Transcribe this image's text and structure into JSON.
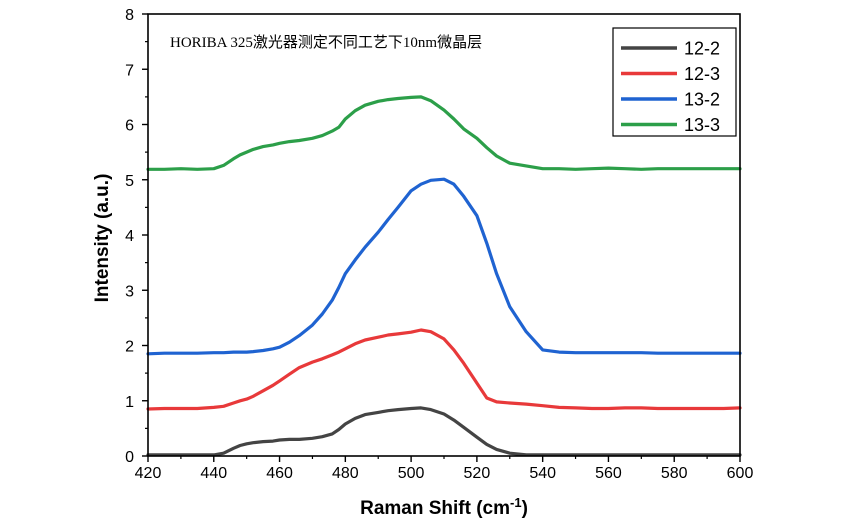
{
  "chart_data": {
    "type": "line",
    "annotation": "HORIBA 325激光器测定不同工艺下10nm微晶层",
    "xlabel": "Raman Shift (cm",
    "xlabel_sup": "-1",
    "xlabel_end": ")",
    "ylabel": "Intensity (a.u.)",
    "xlim": [
      420,
      600
    ],
    "ylim": [
      0,
      8
    ],
    "x_ticks": [
      420,
      440,
      460,
      480,
      500,
      520,
      540,
      560,
      580,
      600
    ],
    "y_ticks": [
      0,
      1,
      2,
      3,
      4,
      5,
      6,
      7,
      8
    ],
    "x_tick_labels": [
      "420",
      "440",
      "460",
      "480",
      "500",
      "520",
      "540",
      "560",
      "580",
      "600"
    ],
    "y_tick_labels": [
      "0",
      "1",
      "2",
      "3",
      "4",
      "5",
      "6",
      "7",
      "8"
    ],
    "grid": false,
    "legend_position": "top-right",
    "x": [
      420,
      425,
      430,
      435,
      440,
      443,
      446,
      448,
      450,
      452,
      455,
      458,
      460,
      463,
      466,
      470,
      473,
      476,
      478,
      480,
      483,
      486,
      490,
      493,
      496,
      500,
      503,
      506,
      510,
      513,
      516,
      520,
      523,
      526,
      530,
      535,
      540,
      545,
      550,
      555,
      560,
      565,
      570,
      575,
      580,
      585,
      590,
      595,
      600
    ],
    "series": [
      {
        "name": "12-2",
        "color": "#444444",
        "values": [
          0.02,
          0.02,
          0.02,
          0.02,
          0.02,
          0.05,
          0.14,
          0.19,
          0.22,
          0.24,
          0.26,
          0.27,
          0.29,
          0.3,
          0.3,
          0.32,
          0.35,
          0.4,
          0.48,
          0.58,
          0.68,
          0.75,
          0.79,
          0.82,
          0.84,
          0.86,
          0.87,
          0.84,
          0.76,
          0.65,
          0.52,
          0.34,
          0.21,
          0.12,
          0.05,
          0.02,
          0.02,
          0.02,
          0.02,
          0.02,
          0.02,
          0.02,
          0.02,
          0.02,
          0.02,
          0.02,
          0.02,
          0.02,
          0.02
        ]
      },
      {
        "name": "12-3",
        "color": "#e8393a",
        "values": [
          0.85,
          0.86,
          0.86,
          0.86,
          0.88,
          0.9,
          0.96,
          1.0,
          1.03,
          1.08,
          1.18,
          1.28,
          1.36,
          1.48,
          1.6,
          1.7,
          1.76,
          1.83,
          1.88,
          1.94,
          2.03,
          2.1,
          2.15,
          2.19,
          2.21,
          2.24,
          2.28,
          2.25,
          2.12,
          1.92,
          1.68,
          1.32,
          1.05,
          0.98,
          0.96,
          0.94,
          0.91,
          0.88,
          0.87,
          0.86,
          0.86,
          0.87,
          0.87,
          0.86,
          0.86,
          0.86,
          0.86,
          0.86,
          0.87
        ]
      },
      {
        "name": "13-2",
        "color": "#1f63d1",
        "values": [
          1.85,
          1.86,
          1.86,
          1.86,
          1.87,
          1.87,
          1.88,
          1.88,
          1.88,
          1.89,
          1.91,
          1.94,
          1.97,
          2.06,
          2.18,
          2.37,
          2.57,
          2.82,
          3.05,
          3.3,
          3.55,
          3.78,
          4.05,
          4.28,
          4.5,
          4.8,
          4.92,
          4.99,
          5.01,
          4.92,
          4.7,
          4.35,
          3.85,
          3.3,
          2.7,
          2.25,
          1.92,
          1.88,
          1.87,
          1.87,
          1.87,
          1.87,
          1.87,
          1.86,
          1.86,
          1.86,
          1.86,
          1.86,
          1.86
        ]
      },
      {
        "name": "13-3",
        "color": "#2c9f49",
        "values": [
          5.19,
          5.19,
          5.2,
          5.19,
          5.2,
          5.26,
          5.38,
          5.45,
          5.5,
          5.55,
          5.6,
          5.63,
          5.66,
          5.69,
          5.71,
          5.75,
          5.8,
          5.88,
          5.95,
          6.1,
          6.25,
          6.35,
          6.42,
          6.45,
          6.47,
          6.49,
          6.5,
          6.43,
          6.26,
          6.1,
          5.92,
          5.75,
          5.58,
          5.43,
          5.3,
          5.25,
          5.2,
          5.2,
          5.19,
          5.2,
          5.21,
          5.2,
          5.19,
          5.2,
          5.2,
          5.2,
          5.2,
          5.2,
          5.2
        ]
      }
    ]
  }
}
